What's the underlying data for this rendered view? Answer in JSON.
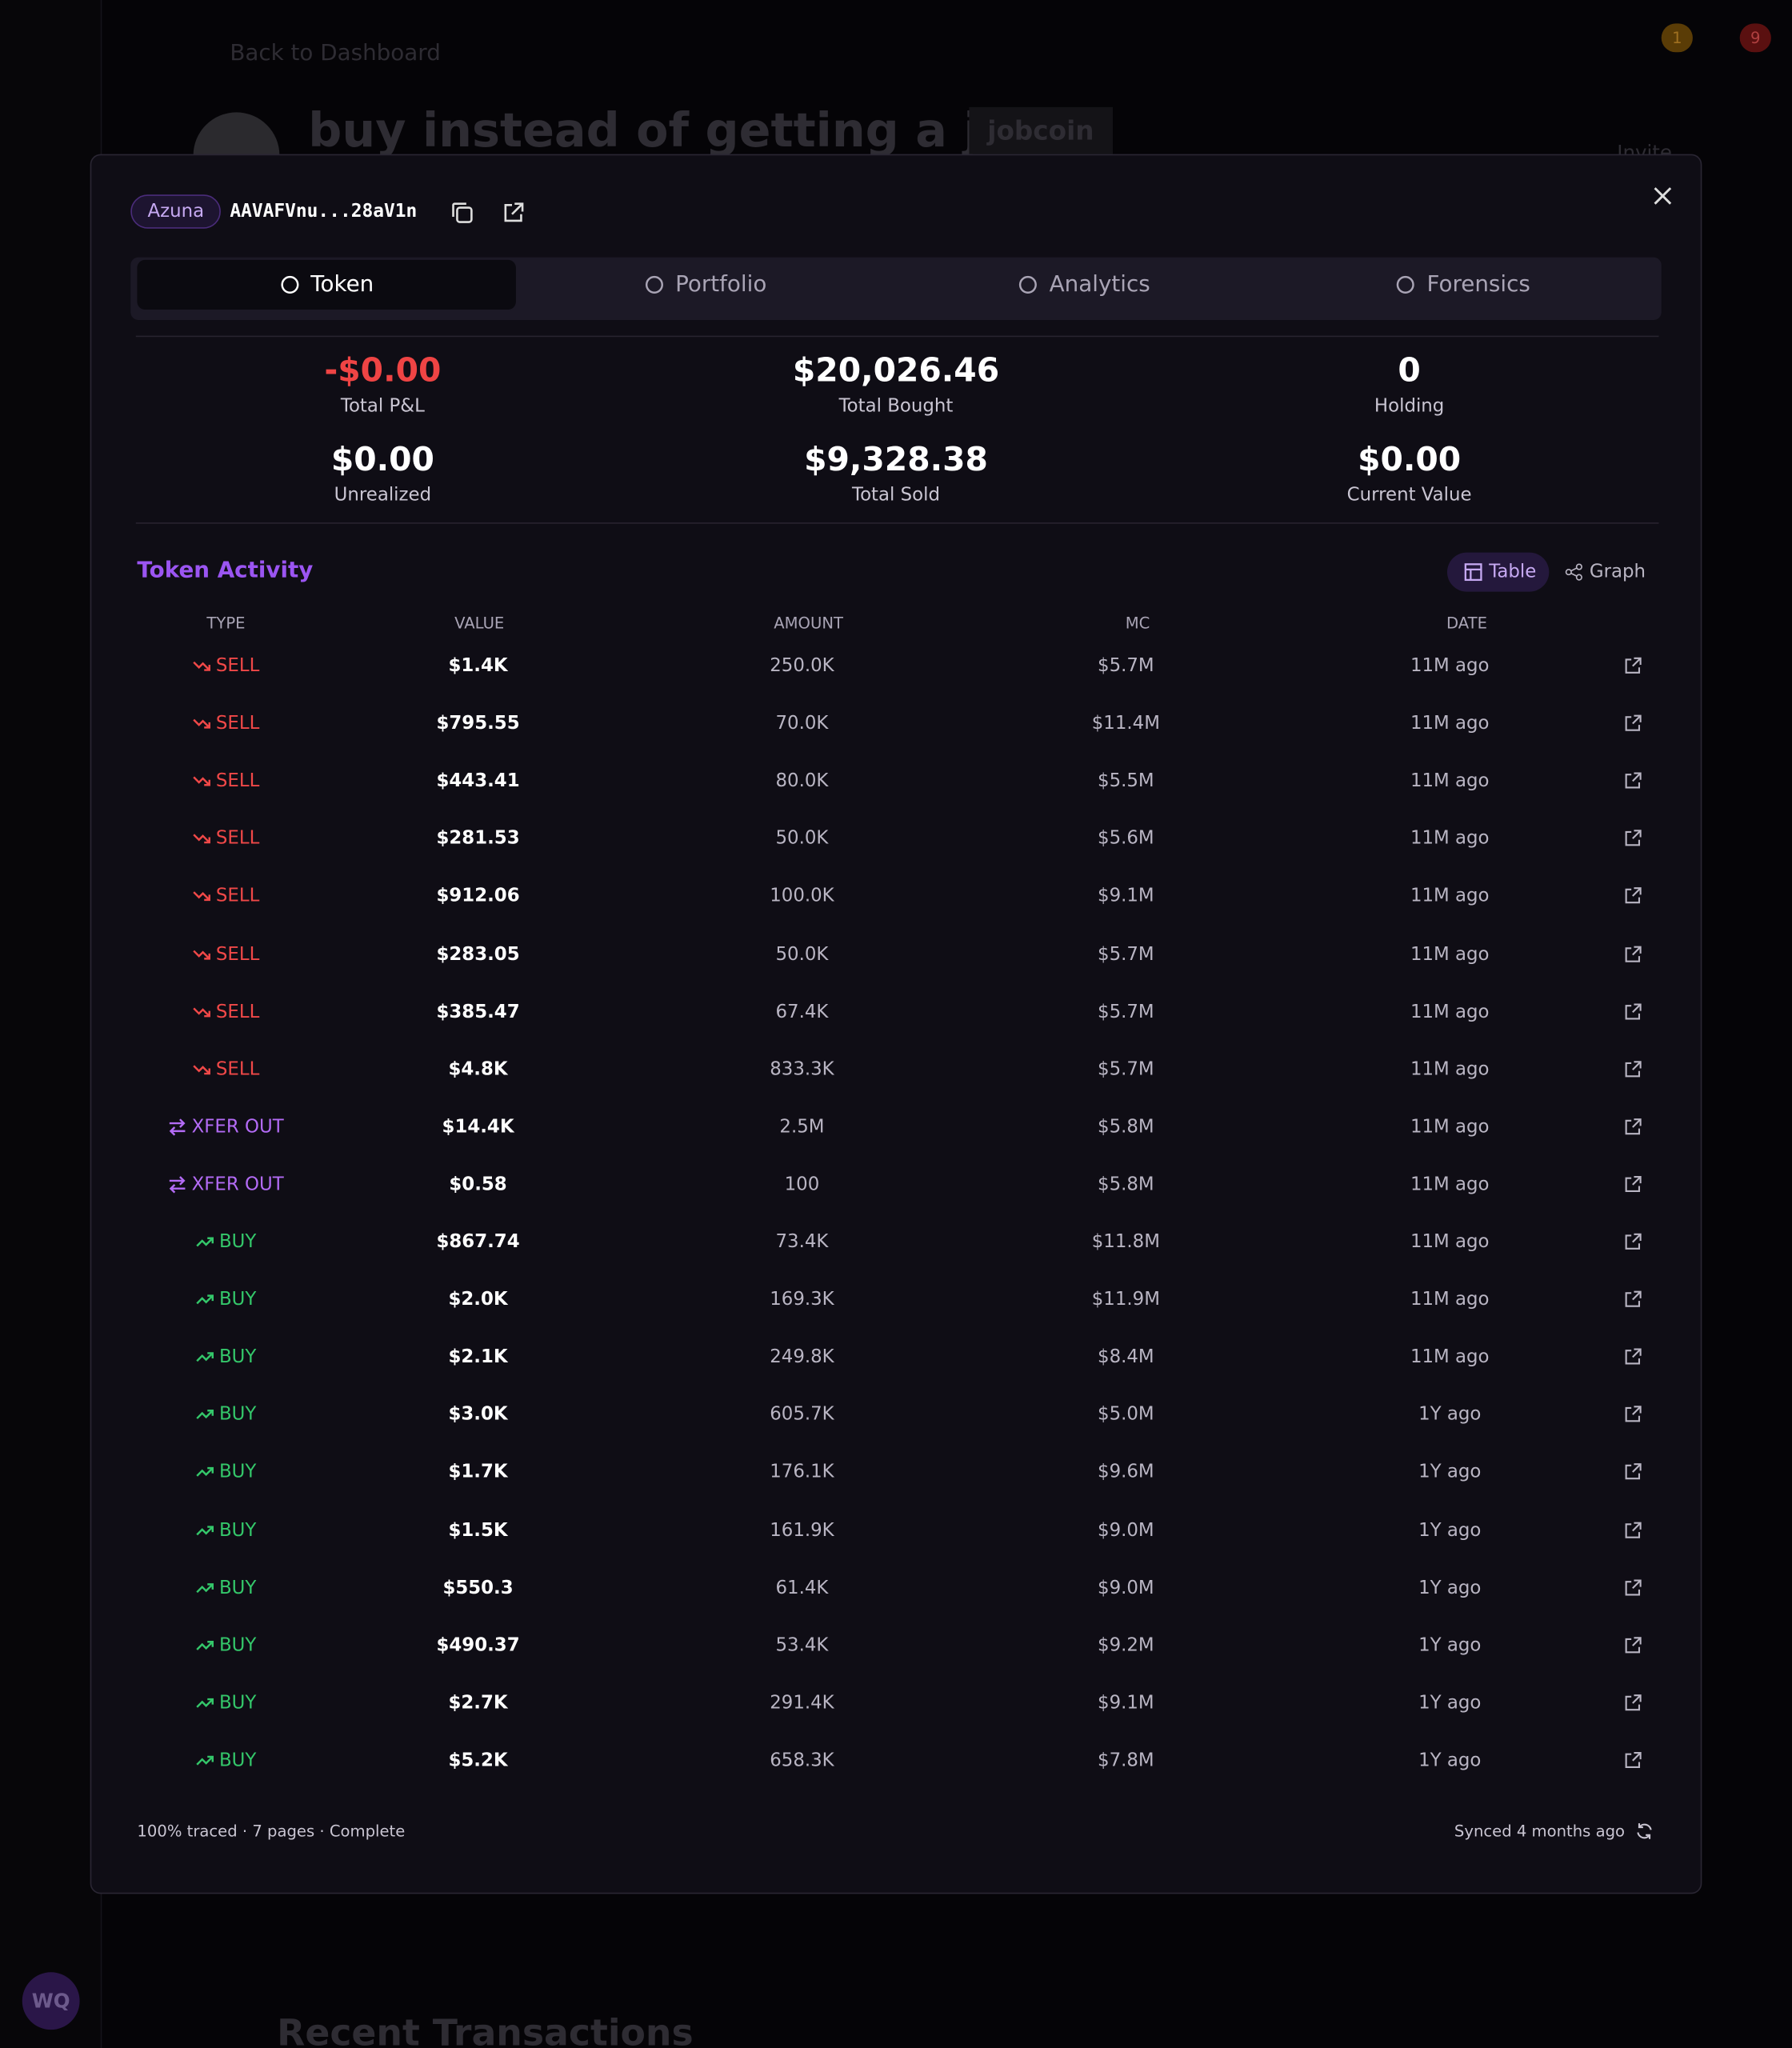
{
  "background": {
    "back_link": "Back to Dashboard",
    "title": "buy instead of getting a job",
    "ticker": "jobcoin",
    "invite": "Invite",
    "section": "Recent Transactions",
    "avatar": "WQ",
    "badges": [
      "1",
      "9"
    ]
  },
  "modal": {
    "chain": "Azuna",
    "address": "AAVAFVnu...28aV1n",
    "tabs": [
      "Token",
      "Portfolio",
      "Analytics",
      "Forensics"
    ],
    "stats": [
      {
        "value": "-$0.00",
        "label": "Total P&L"
      },
      {
        "value": "$20,026.46",
        "label": "Total Bought"
      },
      {
        "value": "0",
        "label": "Holding"
      },
      {
        "value": "$0.00",
        "label": "Unrealized"
      },
      {
        "value": "$9,328.38",
        "label": "Total Sold"
      },
      {
        "value": "$0.00",
        "label": "Current Value"
      }
    ],
    "activity": {
      "title": "Token Activity",
      "views": [
        "Table",
        "Graph"
      ],
      "columns": [
        "TYPE",
        "VALUE",
        "AMOUNT",
        "MC",
        "DATE"
      ],
      "rows": [
        [
          "SELL",
          "$1.4K",
          "250.0K",
          "$5.7M",
          "11M ago"
        ],
        [
          "SELL",
          "$795.55",
          "70.0K",
          "$11.4M",
          "11M ago"
        ],
        [
          "SELL",
          "$443.41",
          "80.0K",
          "$5.5M",
          "11M ago"
        ],
        [
          "SELL",
          "$281.53",
          "50.0K",
          "$5.6M",
          "11M ago"
        ],
        [
          "SELL",
          "$912.06",
          "100.0K",
          "$9.1M",
          "11M ago"
        ],
        [
          "SELL",
          "$283.05",
          "50.0K",
          "$5.7M",
          "11M ago"
        ],
        [
          "SELL",
          "$385.47",
          "67.4K",
          "$5.7M",
          "11M ago"
        ],
        [
          "SELL",
          "$4.8K",
          "833.3K",
          "$5.7M",
          "11M ago"
        ],
        [
          "XFER OUT",
          "$14.4K",
          "2.5M",
          "$5.8M",
          "11M ago"
        ],
        [
          "XFER OUT",
          "$0.58",
          "100",
          "$5.8M",
          "11M ago"
        ],
        [
          "BUY",
          "$867.74",
          "73.4K",
          "$11.8M",
          "11M ago"
        ],
        [
          "BUY",
          "$2.0K",
          "169.3K",
          "$11.9M",
          "11M ago"
        ],
        [
          "BUY",
          "$2.1K",
          "249.8K",
          "$8.4M",
          "11M ago"
        ],
        [
          "BUY",
          "$3.0K",
          "605.7K",
          "$5.0M",
          "1Y ago"
        ],
        [
          "BUY",
          "$1.7K",
          "176.1K",
          "$9.6M",
          "1Y ago"
        ],
        [
          "BUY",
          "$1.5K",
          "161.9K",
          "$9.0M",
          "1Y ago"
        ],
        [
          "BUY",
          "$550.3",
          "61.4K",
          "$9.0M",
          "1Y ago"
        ],
        [
          "BUY",
          "$490.37",
          "53.4K",
          "$9.2M",
          "1Y ago"
        ],
        [
          "BUY",
          "$2.7K",
          "291.4K",
          "$9.1M",
          "1Y ago"
        ],
        [
          "BUY",
          "$5.2K",
          "658.3K",
          "$7.8M",
          "1Y ago"
        ]
      ]
    },
    "footer_left": "100% traced · 7 pages · Complete",
    "footer_right": "Synced 4 months ago"
  }
}
